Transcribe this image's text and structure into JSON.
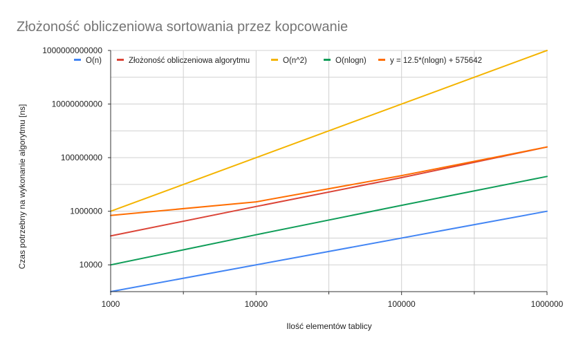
{
  "chart_data": {
    "type": "line",
    "title": "Złożoność obliczeniowa sortowania przez kopcowanie",
    "xlabel": "Ilość elementów tablicy",
    "ylabel": "Czas potrzebny na wykonanie algorytmu [ns]",
    "x_scale": "log",
    "y_scale": "log",
    "xlim": [
      1000,
      1000000
    ],
    "ylim": [
      1000,
      1000000000000
    ],
    "x_ticks": [
      "1000",
      "10000",
      "100000",
      "1000000"
    ],
    "y_ticks": [
      "10000",
      "1000000",
      "100000000",
      "10000000000",
      "1000000000000"
    ],
    "grid": true,
    "legend_position": "top",
    "series": [
      {
        "name": "O(n)",
        "color": "#4285f4",
        "x": [
          1000,
          1000000
        ],
        "y": [
          1000,
          1000000
        ]
      },
      {
        "name": "Złożoność obliczeniowa algorytmu",
        "color": "#db4437",
        "x": [
          1000,
          10000,
          100000,
          1000000
        ],
        "y": [
          120000,
          1500000,
          18000000,
          250000000
        ]
      },
      {
        "name": "O(n^2)",
        "color": "#f4b400",
        "x": [
          1000,
          1000000
        ],
        "y": [
          1000000,
          1000000000000
        ]
      },
      {
        "name": "O(nlogn)",
        "color": "#0f9d58",
        "x": [
          1000,
          10000,
          100000,
          1000000
        ],
        "y": [
          9966,
          132877,
          1660964,
          19931569
        ]
      },
      {
        "name": "y = 12.5*(nlogn) + 575642",
        "color": "#ff6d01",
        "x": [
          1000,
          10000,
          100000,
          1000000
        ],
        "y": [
          700217,
          2236605,
          21337692,
          249720249
        ]
      }
    ]
  }
}
